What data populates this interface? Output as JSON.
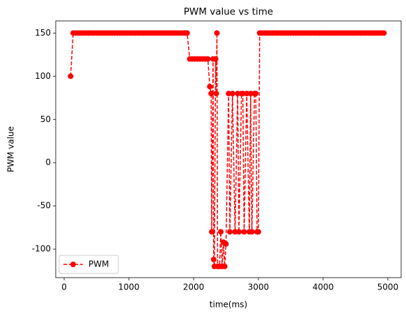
{
  "chart_data": {
    "type": "line",
    "title": "PWM value vs time",
    "x_label": "time(ms)",
    "y_label": "PWM value",
    "x": [
      100,
      140,
      180,
      220,
      260,
      300,
      340,
      380,
      420,
      460,
      500,
      540,
      580,
      620,
      660,
      700,
      740,
      780,
      820,
      860,
      900,
      940,
      980,
      1020,
      1060,
      1100,
      1140,
      1180,
      1220,
      1260,
      1300,
      1340,
      1380,
      1420,
      1460,
      1500,
      1540,
      1580,
      1620,
      1660,
      1700,
      1740,
      1780,
      1820,
      1860,
      1900,
      1940,
      1980,
      2020,
      2060,
      2100,
      2140,
      2180,
      2220,
      2250,
      2270,
      2280,
      2300,
      2310,
      2320,
      2340,
      2350,
      2360,
      2370,
      2400,
      2420,
      2440,
      2460,
      2480,
      2500,
      2540,
      2560,
      2600,
      2640,
      2680,
      2700,
      2740,
      2760,
      2780,
      2820,
      2860,
      2880,
      2900,
      2940,
      2960,
      2980,
      3000,
      3020,
      3060,
      3100,
      3140,
      3180,
      3220,
      3260,
      3300,
      3340,
      3380,
      3420,
      3460,
      3500,
      3540,
      3580,
      3620,
      3660,
      3700,
      3740,
      3780,
      3820,
      3860,
      3900,
      3940,
      3980,
      4020,
      4060,
      4100,
      4140,
      4180,
      4220,
      4260,
      4300,
      4340,
      4380,
      4420,
      4460,
      4500,
      4540,
      4580,
      4620,
      4660,
      4700,
      4740,
      4780,
      4820,
      4860,
      4900,
      4940
    ],
    "series": [
      {
        "name": "PWM",
        "color": "#ff0000",
        "values": [
          100,
          150,
          150,
          150,
          150,
          150,
          150,
          150,
          150,
          150,
          150,
          150,
          150,
          150,
          150,
          150,
          150,
          150,
          150,
          150,
          150,
          150,
          150,
          150,
          150,
          150,
          150,
          150,
          150,
          150,
          150,
          150,
          150,
          150,
          150,
          150,
          150,
          150,
          150,
          150,
          150,
          150,
          150,
          150,
          150,
          150,
          120,
          120,
          120,
          120,
          120,
          120,
          120,
          120,
          88,
          80,
          -80,
          120,
          -112,
          -120,
          120,
          80,
          150,
          -120,
          -120,
          -80,
          -120,
          -92,
          -120,
          -94,
          80,
          -80,
          80,
          -80,
          80,
          -80,
          80,
          80,
          -80,
          80,
          -80,
          80,
          -80,
          80,
          80,
          -80,
          -80,
          150,
          150,
          150,
          150,
          150,
          150,
          150,
          150,
          150,
          150,
          150,
          150,
          150,
          150,
          150,
          150,
          150,
          150,
          150,
          150,
          150,
          150,
          150,
          150,
          150,
          150,
          150,
          150,
          150,
          150,
          150,
          150,
          150,
          150,
          150,
          150,
          150,
          150,
          150,
          150,
          150,
          150,
          150,
          150,
          150,
          150,
          150,
          150,
          150
        ]
      }
    ],
    "xlim": [
      -130,
      5205
    ],
    "ylim": [
      -133,
      164
    ],
    "xticks": [
      0,
      1000,
      2000,
      3000,
      4000,
      5000
    ],
    "yticks": [
      -100,
      -50,
      0,
      50,
      100,
      150
    ],
    "legend": "lower left"
  }
}
